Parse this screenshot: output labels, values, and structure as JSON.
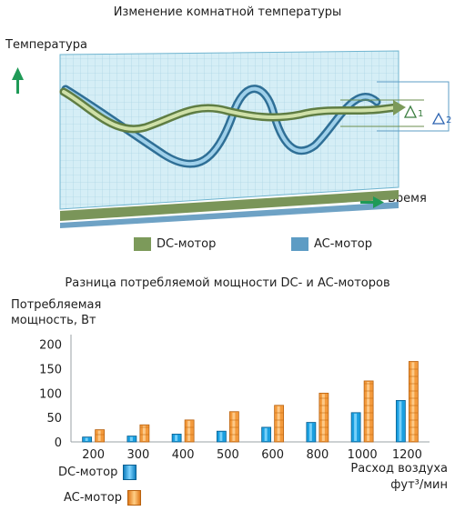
{
  "chart_data": [
    {
      "type": "line",
      "title": "Изменение комнатной температуры",
      "ylabel": "Температура",
      "xlabel": "Время",
      "annotations": [
        "1",
        "2"
      ],
      "series": [
        {
          "name": "DC-мотор",
          "color": "#7c9a5a"
        },
        {
          "name": "AC-мотор",
          "color": "#5d9cc4"
        }
      ],
      "grid": true,
      "legend_position": "bottom"
    },
    {
      "type": "bar",
      "title": "Разница потребляемой мощности DC- и AC-моторов",
      "ylabel": "Потребляемая мощность, Вт",
      "xlabel_lines": [
        "Расход воздуха",
        "фут³/мин"
      ],
      "categories": [
        "200",
        "300",
        "400",
        "500",
        "600",
        "800",
        "1000",
        "1200"
      ],
      "yticks": [
        "0",
        "50",
        "100",
        "150",
        "200"
      ],
      "ylim": [
        0,
        220
      ],
      "series": [
        {
          "name": "DC-мотор",
          "color": "#1a9fe0",
          "values": [
            10,
            12,
            16,
            22,
            30,
            40,
            60,
            85
          ]
        },
        {
          "name": "AC-мотор",
          "color": "#f39a3c",
          "values": [
            25,
            35,
            45,
            62,
            75,
            100,
            125,
            165
          ]
        }
      ],
      "legend_position": "bottom-left"
    }
  ]
}
